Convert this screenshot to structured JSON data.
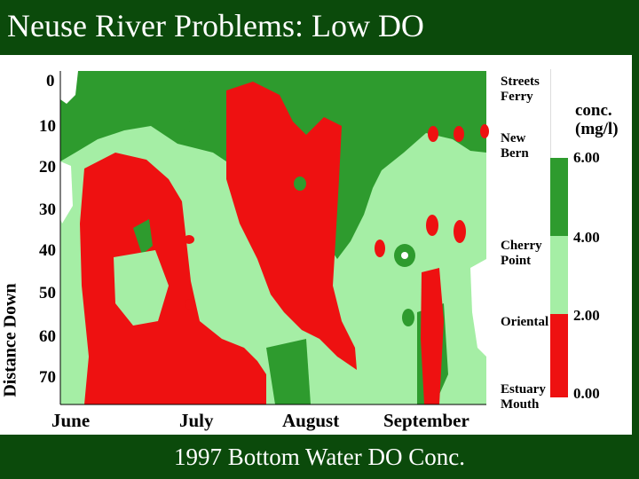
{
  "slide": {
    "title": "Neuse River Problems: Low DO",
    "caption": "1997 Bottom Water DO Conc."
  },
  "chart_data": {
    "type": "heatmap",
    "title": "",
    "ylabel": "Distance Down",
    "y_ticks": [
      "0",
      "10",
      "20",
      "30",
      "40",
      "50",
      "60",
      "70"
    ],
    "x_ticks": [
      "June",
      "July",
      "August",
      "September"
    ],
    "stations": [
      {
        "name": "Streets Ferry",
        "position": 0
      },
      {
        "name": "New Bern",
        "position": 15
      },
      {
        "name": "Cherry Point",
        "position": 39
      },
      {
        "name": "Oriental",
        "position": 57
      },
      {
        "name": "Estuary Mouth",
        "position": 73
      }
    ],
    "legend": {
      "title": "conc. (mg/l)",
      "bins": [
        {
          "range": [
            6.0,
            8.0
          ],
          "color": "#ffffff"
        },
        {
          "range": [
            4.0,
            6.0
          ],
          "color": "#2e9b2e"
        },
        {
          "range": [
            2.0,
            4.0
          ],
          "color": "#a5eea5"
        },
        {
          "range": [
            0.0,
            2.0
          ],
          "color": "#ee1111"
        }
      ],
      "labels": [
        "6.00",
        "4.00",
        "2.00",
        "0.00"
      ]
    },
    "colors": {
      "white": "#ffffff",
      "dark_green": "#2e9b2e",
      "light_green": "#a5eea5",
      "red": "#ee1111"
    }
  }
}
